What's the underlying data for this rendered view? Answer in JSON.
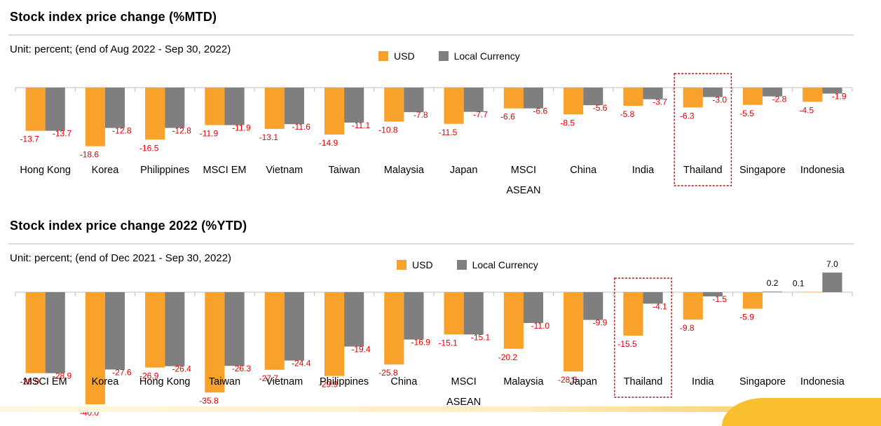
{
  "colors": {
    "usd": "#f8a22c",
    "local": "#7f7f7f",
    "label": "#e00000",
    "highlight": "#9b1c1c"
  },
  "charts": [
    {
      "title": "Stock index price change (%MTD)",
      "unit": "Unit: percent;  (end of Aug 2022 - Sep 30, 2022)",
      "legend": [
        "USD",
        "Local Currency"
      ],
      "highlight": "Thailand"
    },
    {
      "title": "Stock index price change 2022 (%YTD)",
      "unit": "Unit: percent;  (end of Dec 2021 - Sep 30, 2022)",
      "legend": [
        "USD",
        "Local Currency"
      ],
      "highlight": "Thailand"
    }
  ],
  "chart_data": [
    {
      "type": "bar",
      "categories": [
        "Hong Kong",
        "Korea",
        "Philippines",
        "MSCI EM",
        "Vietnam",
        "Taiwan",
        "Malaysia",
        "Japan",
        "MSCI\nASEAN",
        "China",
        "India",
        "Thailand",
        "Singapore",
        "Indonesia"
      ],
      "series": [
        {
          "name": "USD",
          "values": [
            -13.7,
            -18.6,
            -16.5,
            -11.9,
            -13.1,
            -14.9,
            -10.8,
            -11.5,
            -6.6,
            -8.5,
            -5.8,
            -6.3,
            -5.5,
            -4.5
          ]
        },
        {
          "name": "Local Currency",
          "values": [
            -13.7,
            -12.8,
            -12.8,
            -11.9,
            -11.6,
            -11.1,
            -7.8,
            -7.7,
            -6.6,
            -5.6,
            -3.7,
            -3.0,
            -2.8,
            -1.9
          ]
        }
      ],
      "ylim": [
        -20,
        0
      ],
      "grid": false,
      "legend_position": "top"
    },
    {
      "type": "bar",
      "categories": [
        "MSCI EM",
        "Korea",
        "Hong Kong",
        "Taiwan",
        "Vietnam",
        "Philippines",
        "China",
        "MSCI\nASEAN",
        "Malaysia",
        "Japan",
        "Thailand",
        "India",
        "Singapore",
        "Indonesia"
      ],
      "series": [
        {
          "name": "USD",
          "values": [
            -28.9,
            -40.0,
            -26.9,
            -35.8,
            -27.7,
            -29.9,
            -25.8,
            -15.1,
            -20.2,
            -28.3,
            -15.5,
            -9.8,
            -5.9,
            0.1
          ]
        },
        {
          "name": "Local Currency",
          "values": [
            -28.9,
            -27.6,
            -26.4,
            -26.3,
            -24.4,
            -19.4,
            -16.9,
            -15.1,
            -11.0,
            -9.9,
            -4.1,
            -1.5,
            0.2,
            7.0
          ]
        }
      ],
      "ylim": [
        -42,
        8
      ],
      "grid": false,
      "legend_position": "top"
    }
  ]
}
